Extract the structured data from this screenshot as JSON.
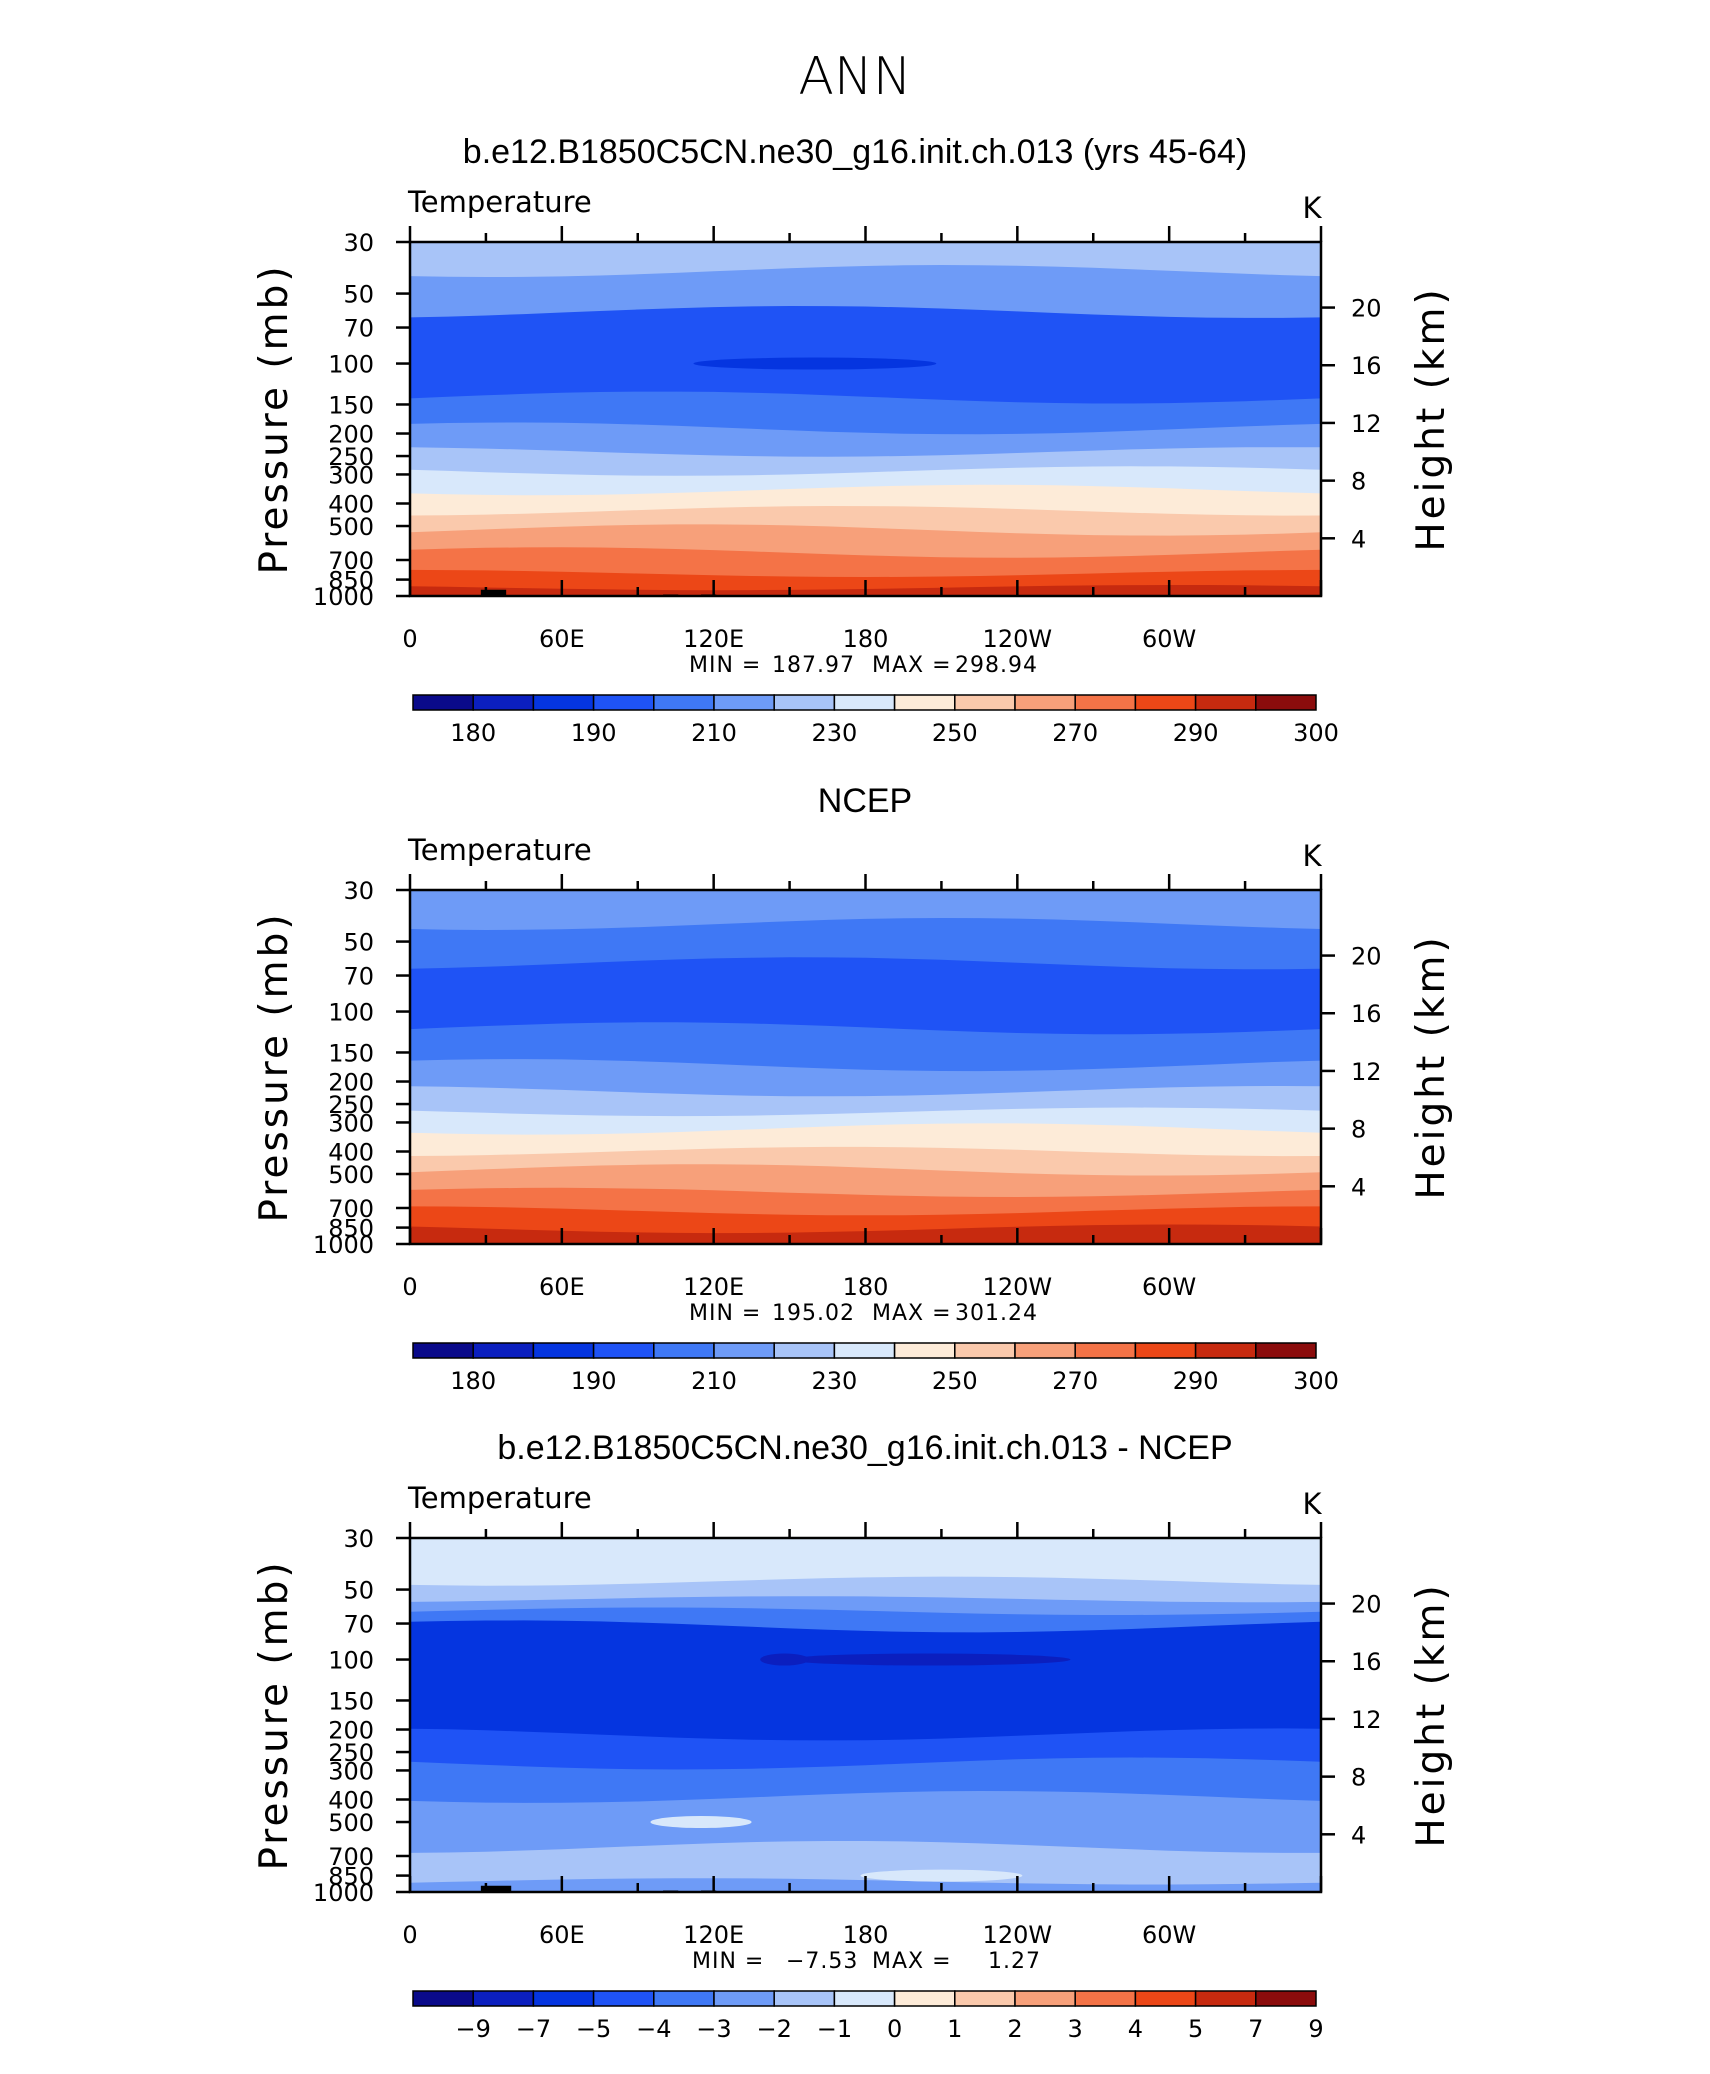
{
  "figure": {
    "title": "ANN",
    "bar_colors": [
      "#0a0a8a",
      "#0b1fbf",
      "#0535e0",
      "#1f53f5",
      "#3f78f5",
      "#6e9bf7",
      "#a8c4f8",
      "#d8e8fb",
      "#fdebd8",
      "#fac9ac",
      "#f7a07a",
      "#f47347",
      "#ec4717",
      "#c72a0f",
      "#8b0c0c"
    ]
  },
  "chart_data": [
    {
      "type": "heatmap",
      "title": "b.e12.B1850C5CN.ne30_g16.init.ch.013 (yrs 45-64)",
      "left_string": "Temperature",
      "units": "K",
      "ylabel": "Pressure (mb)",
      "ylabel_right": "Height (km)",
      "yticks": [
        "30",
        "50",
        "70",
        "100",
        "150",
        "200",
        "250",
        "300",
        "400",
        "500",
        "700",
        "850",
        "1000"
      ],
      "yticks_right": [
        "20",
        "16",
        "12",
        "8",
        "4"
      ],
      "xticks": [
        "0",
        "60E",
        "120E",
        "180",
        "120W",
        "60W"
      ],
      "min_label": "MIN =",
      "min_value": "187.97",
      "max_label": "MAX =",
      "max_value": "298.94",
      "colorbar_labels": [
        "180",
        "190",
        "210",
        "230",
        "250",
        "270",
        "290",
        "300"
      ],
      "levels": [
        {
          "p": 30,
          "band": 6
        },
        {
          "p": 40,
          "band": 5
        },
        {
          "p": 60,
          "band": 3
        },
        {
          "p": 140,
          "band": 4
        },
        {
          "p": 190,
          "band": 5
        },
        {
          "p": 240,
          "band": 6
        },
        {
          "p": 290,
          "band": 7
        },
        {
          "p": 350,
          "band": 8
        },
        {
          "p": 430,
          "band": 9
        },
        {
          "p": 520,
          "band": 10
        },
        {
          "p": 650,
          "band": 11
        },
        {
          "p": 800,
          "band": 12
        },
        {
          "p": 920,
          "band": 13
        }
      ],
      "blobs": [
        {
          "lon": 160,
          "p": 100,
          "width_deg": 60,
          "band": 2
        }
      ],
      "topography": [
        {
          "lon0": 5,
          "lon1": 35,
          "p": 990
        },
        {
          "lon0": 28,
          "lon1": 38,
          "p": 940
        },
        {
          "lon0": 100,
          "lon1": 106,
          "p": 985
        },
        {
          "lon0": 115,
          "lon1": 121,
          "p": 985
        },
        {
          "lon0": 282,
          "lon1": 310,
          "p": 990
        }
      ]
    },
    {
      "type": "heatmap",
      "title": "NCEP",
      "left_string": "Temperature",
      "units": "K",
      "ylabel": "Pressure (mb)",
      "ylabel_right": "Height (km)",
      "yticks": [
        "30",
        "50",
        "70",
        "100",
        "150",
        "200",
        "250",
        "300",
        "400",
        "500",
        "700",
        "850",
        "1000"
      ],
      "yticks_right": [
        "20",
        "16",
        "12",
        "8",
        "4"
      ],
      "xticks": [
        "0",
        "60E",
        "120E",
        "180",
        "120W",
        "60W"
      ],
      "min_label": "MIN =",
      "min_value": "195.02",
      "max_label": "MAX =",
      "max_value": "301.24",
      "colorbar_labels": [
        "180",
        "190",
        "210",
        "230",
        "250",
        "270",
        "290",
        "300"
      ],
      "levels": [
        {
          "p": 30,
          "band": 5
        },
        {
          "p": 42,
          "band": 4
        },
        {
          "p": 62,
          "band": 3
        },
        {
          "p": 118,
          "band": 4
        },
        {
          "p": 170,
          "band": 5
        },
        {
          "p": 220,
          "band": 6
        },
        {
          "p": 270,
          "band": 7
        },
        {
          "p": 320,
          "band": 8
        },
        {
          "p": 400,
          "band": 9
        },
        {
          "p": 480,
          "band": 10
        },
        {
          "p": 600,
          "band": 11
        },
        {
          "p": 720,
          "band": 12
        },
        {
          "p": 860,
          "band": 13
        }
      ],
      "blobs": [],
      "topography": []
    },
    {
      "type": "heatmap",
      "title": "b.e12.B1850C5CN.ne30_g16.init.ch.013 - NCEP",
      "left_string": "Temperature",
      "units": "K",
      "ylabel": "Pressure (mb)",
      "ylabel_right": "Height (km)",
      "yticks": [
        "30",
        "50",
        "70",
        "100",
        "150",
        "200",
        "250",
        "300",
        "400",
        "500",
        "700",
        "850",
        "1000"
      ],
      "yticks_right": [
        "20",
        "16",
        "12",
        "8",
        "4"
      ],
      "xticks": [
        "0",
        "60E",
        "120E",
        "180",
        "120W",
        "60W"
      ],
      "min_label": "MIN =",
      "min_value": "−7.53",
      "max_label": "MAX =",
      "max_value": "1.27",
      "colorbar_labels": [
        "−9",
        "−7",
        "−5",
        "−4",
        "−3",
        "−2",
        "−1",
        "0",
        "1",
        "2",
        "3",
        "4",
        "5",
        "7",
        "9"
      ],
      "levels": [
        {
          "p": 30,
          "band": 7
        },
        {
          "p": 46,
          "band": 6
        },
        {
          "p": 55,
          "band": 5
        },
        {
          "p": 62,
          "band": 4
        },
        {
          "p": 72,
          "band": 2
        },
        {
          "p": 210,
          "band": 3
        },
        {
          "p": 280,
          "band": 4
        },
        {
          "p": 390,
          "band": 5
        },
        {
          "p": 640,
          "band": 6
        },
        {
          "p": 900,
          "band": 5
        }
      ],
      "blobs": [
        {
          "lon": 205,
          "p": 100,
          "width_deg": 70,
          "band": 1
        },
        {
          "lon": 148,
          "p": 100,
          "width_deg": 12,
          "band": 1
        },
        {
          "lon": 115,
          "p": 500,
          "width_deg": 25,
          "band": 7
        },
        {
          "lon": 210,
          "p": 850,
          "width_deg": 40,
          "band": 7
        }
      ],
      "topography": [
        {
          "lon0": 5,
          "lon1": 35,
          "p": 990
        },
        {
          "lon0": 28,
          "lon1": 40,
          "p": 940
        },
        {
          "lon0": 100,
          "lon1": 106,
          "p": 985
        },
        {
          "lon0": 115,
          "lon1": 121,
          "p": 985
        },
        {
          "lon0": 282,
          "lon1": 312,
          "p": 990
        }
      ]
    }
  ]
}
